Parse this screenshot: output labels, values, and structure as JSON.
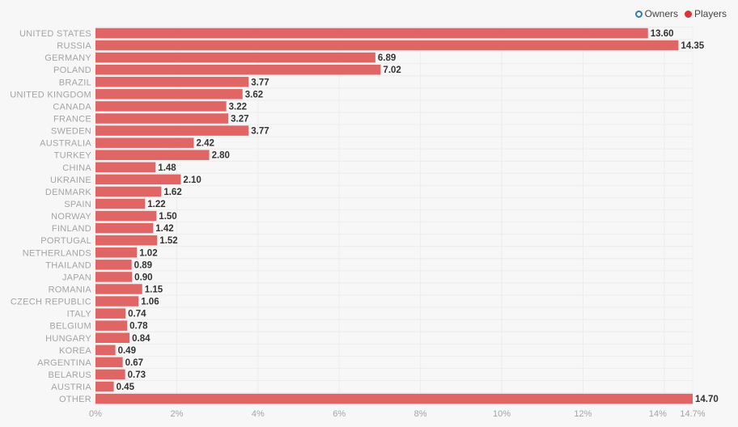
{
  "chart_data": {
    "type": "bar",
    "orientation": "horizontal",
    "categories": [
      "UNITED STATES",
      "RUSSIA",
      "GERMANY",
      "POLAND",
      "BRAZIL",
      "UNITED KINGDOM",
      "CANADA",
      "FRANCE",
      "SWEDEN",
      "AUSTRALIA",
      "TURKEY",
      "CHINA",
      "UKRAINE",
      "DENMARK",
      "SPAIN",
      "NORWAY",
      "FINLAND",
      "PORTUGAL",
      "NETHERLANDS",
      "THAILAND",
      "JAPAN",
      "ROMANIA",
      "CZECH REPUBLIC",
      "ITALY",
      "BELGIUM",
      "HUNGARY",
      "KOREA",
      "ARGENTINA",
      "BELARUS",
      "AUSTRIA",
      "OTHER"
    ],
    "series": [
      {
        "name": "Players",
        "color": "#e06666",
        "values": [
          13.6,
          14.35,
          6.89,
          7.02,
          3.77,
          3.62,
          3.22,
          3.27,
          3.77,
          2.42,
          2.8,
          1.48,
          2.1,
          1.62,
          1.22,
          1.5,
          1.42,
          1.52,
          1.02,
          0.89,
          0.9,
          1.15,
          1.06,
          0.74,
          0.78,
          0.84,
          0.49,
          0.67,
          0.73,
          0.45,
          14.7
        ],
        "value_labels": [
          "13.60",
          "14.35",
          "6.89",
          "7.02",
          "3.77",
          "3.62",
          "3.22",
          "3.27",
          "3.77",
          "2.42",
          "2.80",
          "1.48",
          "2.10",
          "1.62",
          "1.22",
          "1.50",
          "1.42",
          "1.52",
          "1.02",
          "0.89",
          "0.90",
          "1.15",
          "1.06",
          "0.74",
          "0.78",
          "0.84",
          "0.49",
          "0.67",
          "0.73",
          "0.45",
          "14.70"
        ]
      }
    ],
    "xlim": [
      0,
      14.7
    ],
    "x_ticks": [
      {
        "value": 0,
        "label": "0%"
      },
      {
        "value": 2,
        "label": "2%"
      },
      {
        "value": 4,
        "label": "4%"
      },
      {
        "value": 6,
        "label": "6%"
      },
      {
        "value": 8,
        "label": "8%"
      },
      {
        "value": 10,
        "label": "10%"
      },
      {
        "value": 12,
        "label": "12%"
      },
      {
        "value": 14,
        "label": "14%"
      },
      {
        "value": 14.7,
        "label": "14.7%"
      }
    ],
    "grid": true,
    "legend": {
      "placement": "top-right",
      "entries": [
        {
          "name": "Owners",
          "active": false,
          "color": "#2f7ea6"
        },
        {
          "name": "Players",
          "active": true,
          "color": "#d9343b"
        }
      ]
    }
  }
}
